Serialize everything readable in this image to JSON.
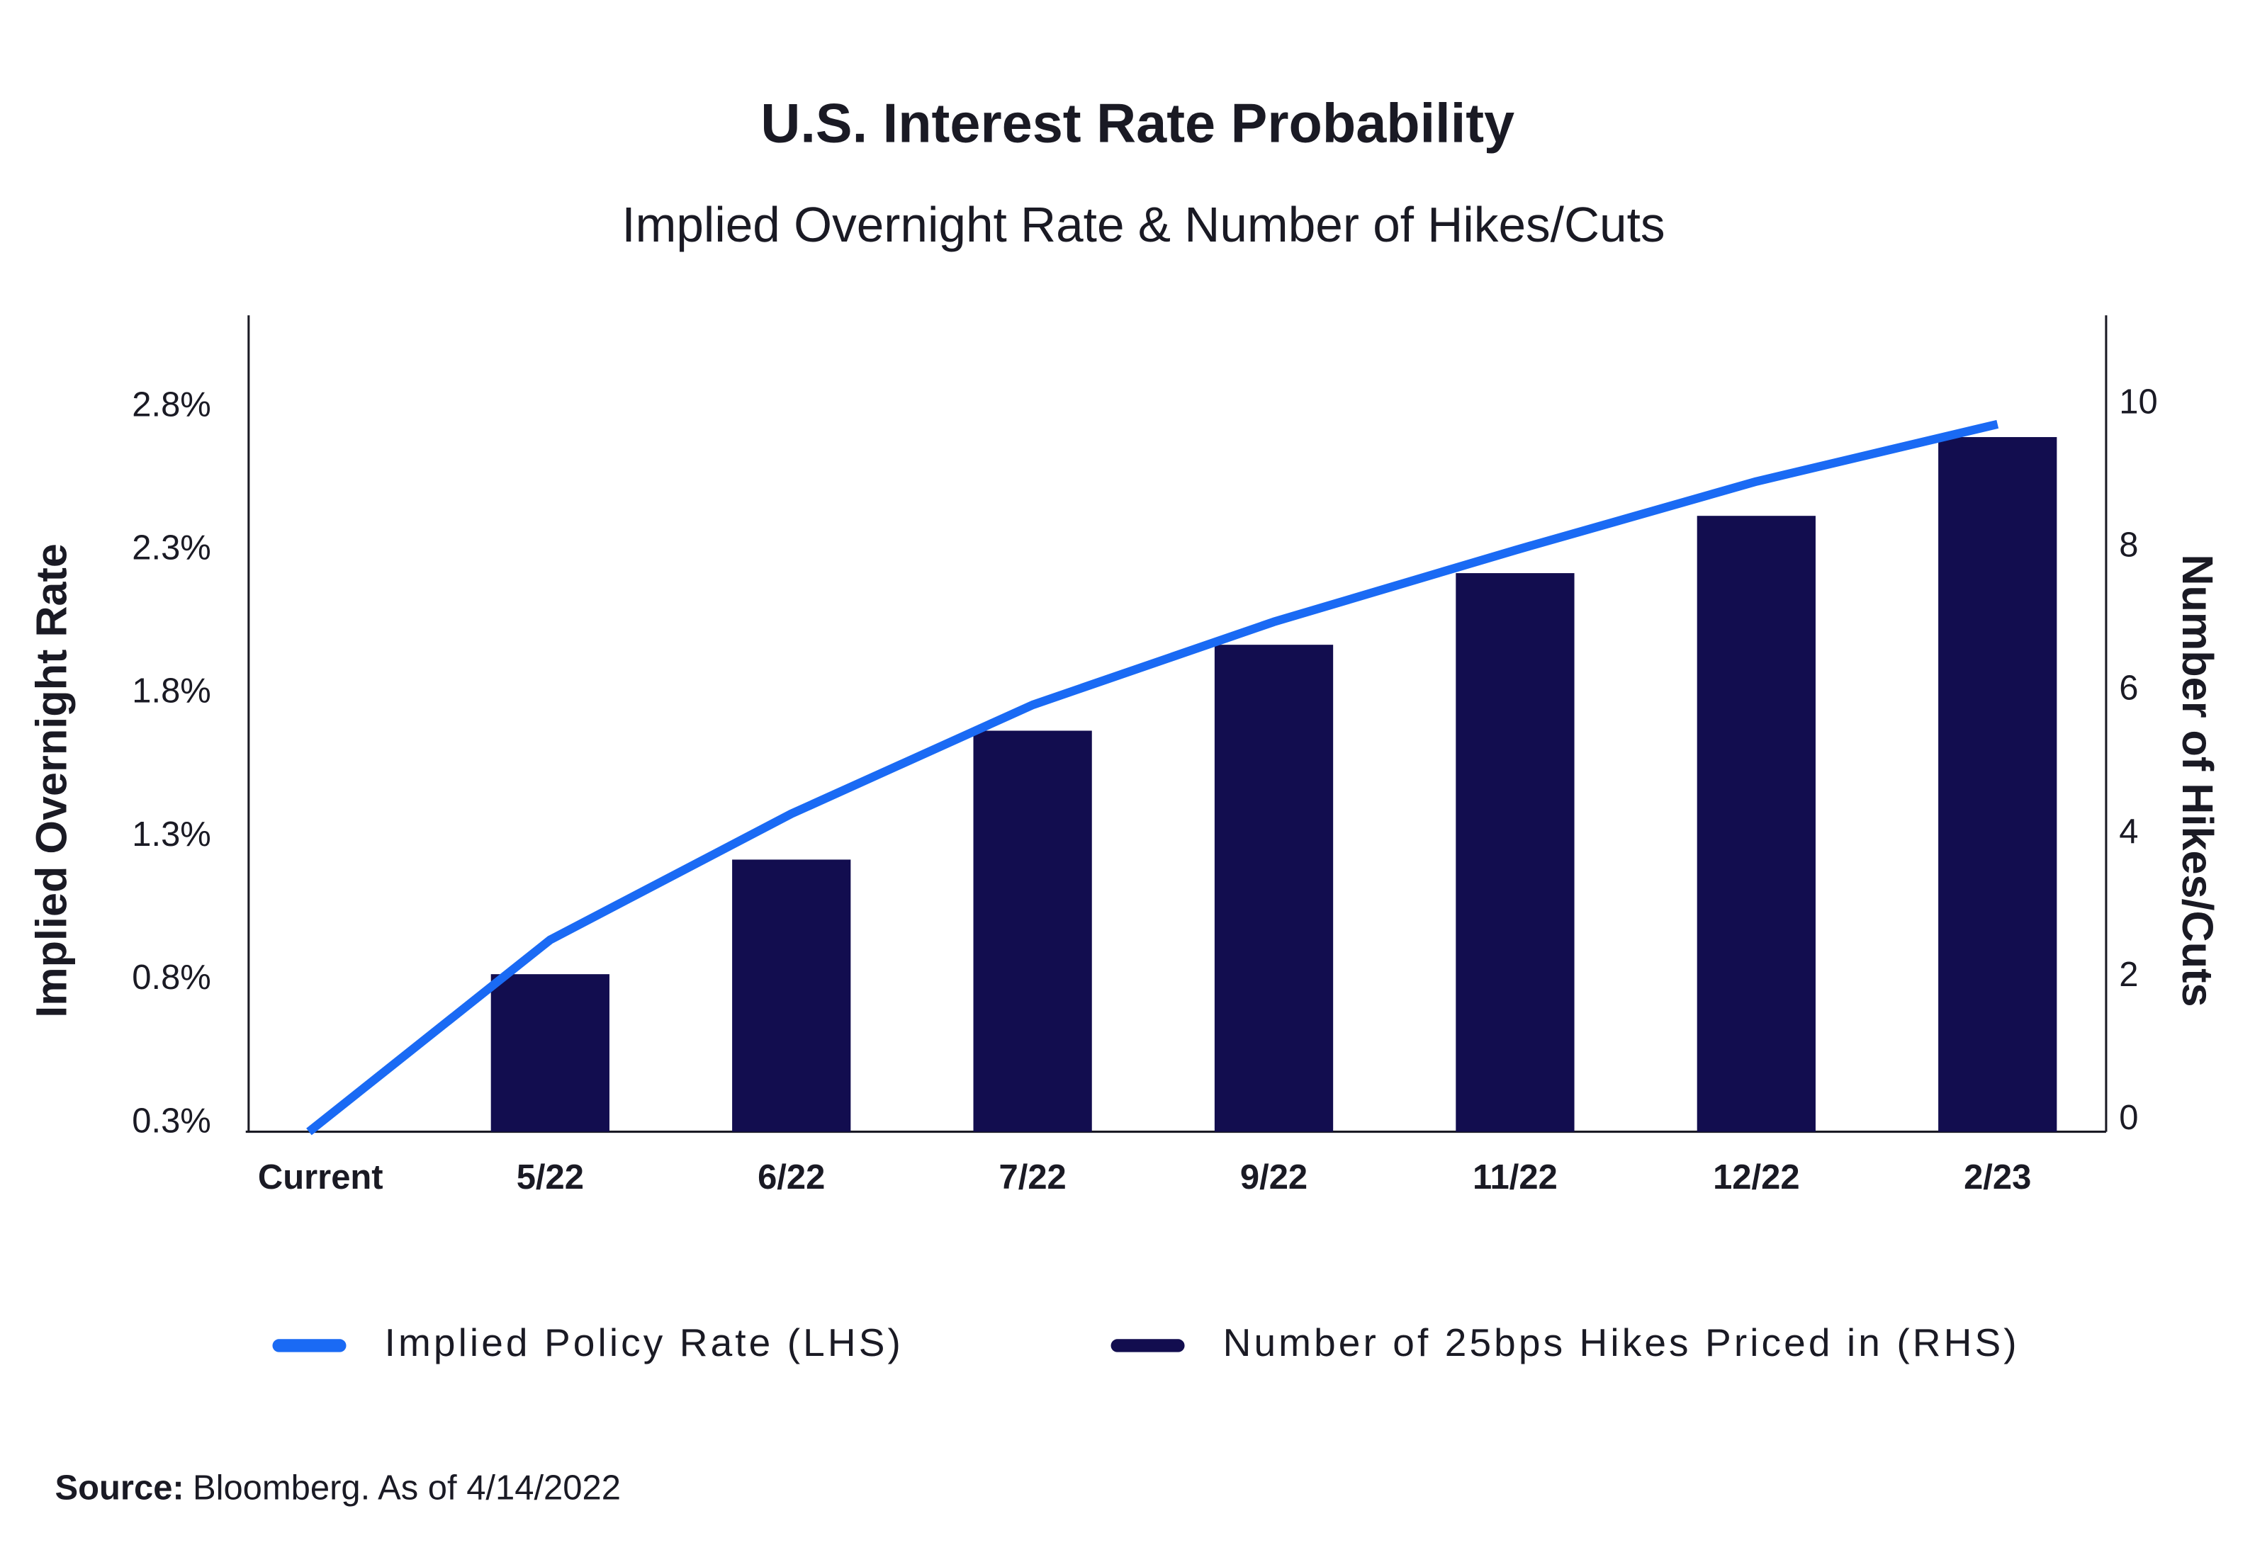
{
  "chart_data": {
    "type": "bar-line",
    "title": "U.S. Interest Rate Probability",
    "subtitle": "Implied Overnight Rate & Number of Hikes/Cuts",
    "y_label": "Implied Overnight Rate",
    "y2_label": "Number of Hikes/Cuts",
    "categories": [
      "Current",
      "5/22",
      "6/22",
      "7/22",
      "9/22",
      "11/22",
      "12/22",
      "2/23"
    ],
    "series": [
      {
        "name": "Implied Policy Rate (LHS)",
        "type": "line",
        "color": "#1a6af4",
        "values": [
          0.3,
          0.97,
          1.41,
          1.79,
          2.08,
          2.33,
          2.57,
          2.77
        ]
      },
      {
        "name": "Number of 25bps Hikes Priced in (RHS)",
        "type": "bar",
        "axis": "y2",
        "color": "#120d4f",
        "values": [
          0,
          2.2,
          3.8,
          5.6,
          6.8,
          7.8,
          8.6,
          9.7
        ]
      }
    ],
    "ylim": [
      0.3,
      3.15
    ],
    "yticks": [
      {
        "value": 0.3,
        "label": "0.3%"
      },
      {
        "value": 0.8,
        "label": "0.8%"
      },
      {
        "value": 1.3,
        "label": "1.3%"
      },
      {
        "value": 1.8,
        "label": "1.8%"
      },
      {
        "value": 2.3,
        "label": "2.3%"
      },
      {
        "value": 2.8,
        "label": "2.8%"
      }
    ],
    "y2lim": [
      0,
      11.4
    ],
    "y2ticks": [
      0,
      2,
      4,
      6,
      8,
      10
    ],
    "grid": false,
    "legend": "bottom",
    "source_label": "Source:",
    "source_text": "Bloomberg. As of 4/14/2022"
  }
}
